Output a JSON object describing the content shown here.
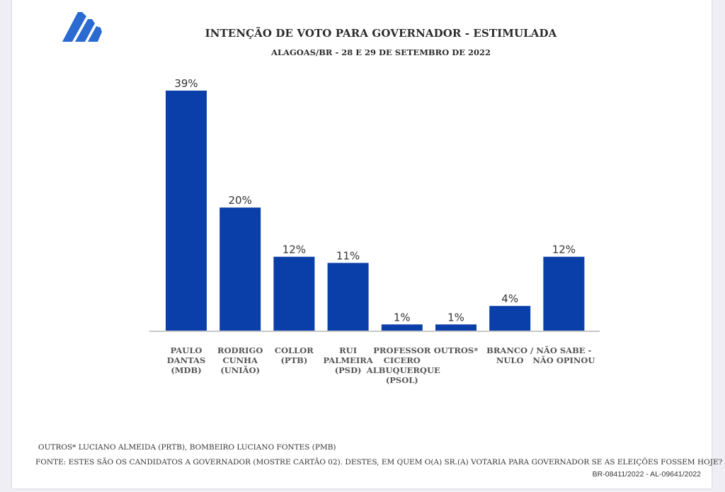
{
  "header": {
    "logo": "triangle-stripes-logo",
    "title": "INTENÇÃO DE VOTO PARA GOVERNADOR - ESTIMULADA",
    "subtitle": "ALAGOAS/BR - 28 E 29 DE SETEMBRO DE 2022"
  },
  "colors": {
    "bar": "#0a3ea8",
    "logo": "#2a6ad1",
    "axis": "#c8c8c8",
    "label": "#555555",
    "value_label": "#333333"
  },
  "chart_data": {
    "type": "bar",
    "title": "INTENÇÃO DE VOTO PARA GOVERNADOR - ESTIMULADA",
    "subtitle": "ALAGOAS/BR - 28 E 29 DE SETEMBRO DE 2022",
    "xlabel": "",
    "ylabel": "",
    "ylim": [
      0,
      39
    ],
    "grid": false,
    "legend": "none",
    "categories": [
      "PAULO\nDANTAS\n(MDB)",
      "RODRIGO\nCUNHA\n(UNIÃO)",
      "COLLOR\n(PTB)",
      "RUI\nPALMEIRA\n(PSD)",
      "PROFESSOR\nCICERO\nALBUQUERQUE\n(PSOL)",
      "OUTROS*",
      "BRANCO /\nNULO",
      "NÃO SABE  -\nNÃO OPINOU"
    ],
    "values": [
      39,
      20,
      12,
      11,
      1,
      1,
      4,
      12
    ],
    "value_labels": [
      "39%",
      "20%",
      "12%",
      "11%",
      "1%",
      "1%",
      "4%",
      "12%"
    ],
    "unit": "%"
  },
  "footer": {
    "footnote": "OUTROS* LUCIANO ALMEIDA (PRTB), BOMBEIRO LUCIANO FONTES (PMB)",
    "source": "FONTE: ESTES SÃO OS CANDIDATOS A GOVERNADOR (MOSTRE CARTÃO 02). DESTES, EM QUEM O(A) SR.(A) VOTARIA PARA GOVERNADOR SE AS ELEIÇÕES FOSSEM HOJE?",
    "registry": "BR-08411/2022 - AL-09641/2022"
  }
}
